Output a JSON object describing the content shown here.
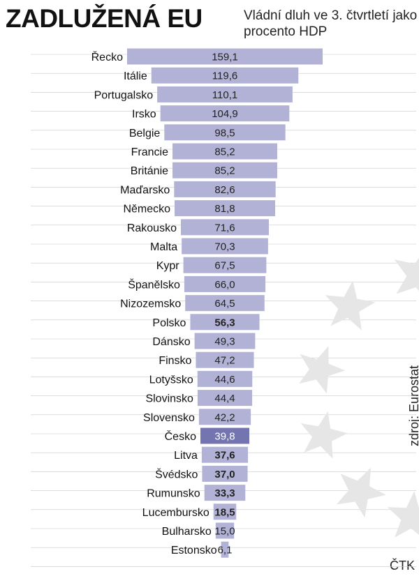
{
  "header": {
    "title": "ZADLUŽENÁ EU",
    "subtitle": "Vládní dluh ve 3. čtvrtletí jako procento HDP"
  },
  "footer": {
    "source": "zdroj: Eurostat",
    "credit": "ČTK"
  },
  "colors": {
    "bar": "#b2b2d6",
    "highlight_bar": "#7474b0",
    "text": "#111111",
    "stars": "#e6e6e6",
    "grid": "#c8c8c8"
  },
  "chart_data": {
    "type": "bar",
    "orientation": "horizontal",
    "layout": "centered",
    "categories": [
      "Řecko",
      "Itálie",
      "Portugalsko",
      "Irsko",
      "Belgie",
      "Francie",
      "Británie",
      "Maďarsko",
      "Německo",
      "Rakousko",
      "Malta",
      "Kypr",
      "Španělsko",
      "Nizozemsko",
      "Polsko",
      "Dánsko",
      "Finsko",
      "Lotyšsko",
      "Slovinsko",
      "Slovensko",
      "Česko",
      "Litva",
      "Švédsko",
      "Rumunsko",
      "Lucembursko",
      "Bulharsko",
      "Estonsko"
    ],
    "values": [
      159.1,
      119.6,
      110.1,
      104.9,
      98.5,
      85.2,
      85.2,
      82.6,
      81.8,
      71.6,
      70.3,
      67.5,
      66.0,
      64.5,
      56.3,
      49.3,
      47.2,
      44.6,
      44.4,
      42.2,
      39.8,
      37.6,
      37.0,
      33.3,
      18.5,
      15.0,
      6.1
    ],
    "value_labels": [
      "159,1",
      "119,6",
      "110,1",
      "104,9",
      "98,5",
      "85,2",
      "85,2",
      "82,6",
      "81,8",
      "71,6",
      "70,3",
      "67,5",
      "66,0",
      "64,5",
      "56,3",
      "49,3",
      "47,2",
      "44,6",
      "44,4",
      "42,2",
      "39,8",
      "37,6",
      "37,0",
      "33,3",
      "18,5",
      "15,0",
      "6,1"
    ],
    "highlight": "Česko",
    "bold_labels": [
      "Polsko",
      "Litva",
      "Švédsko",
      "Rumunsko",
      "Lucembursko"
    ],
    "grid": true
  }
}
